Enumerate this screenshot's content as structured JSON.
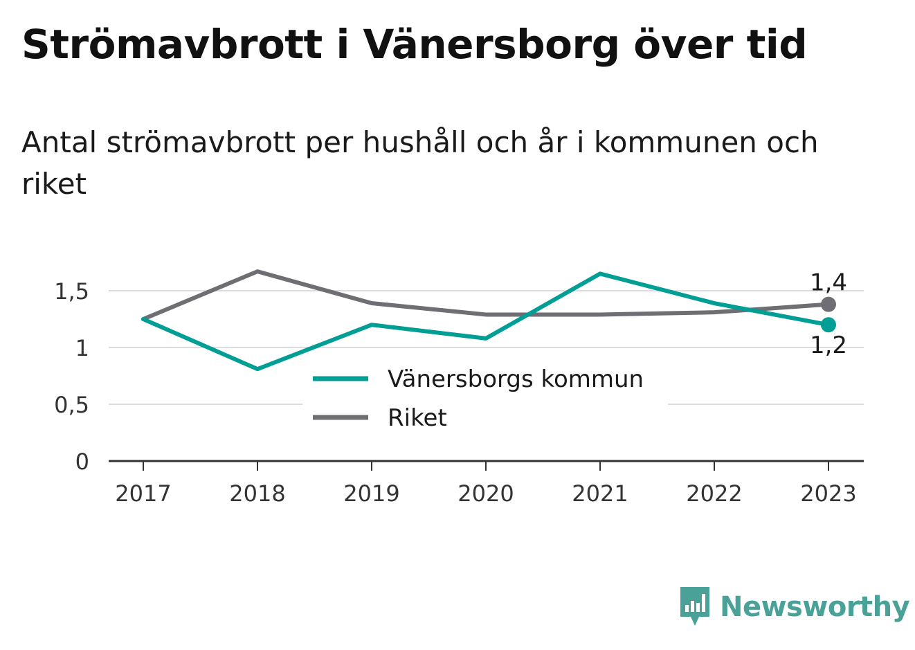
{
  "title": "Strömavbrott i Vänersborg över tid",
  "subtitle": "Antal strömavbrott per hushåll och år i kommunen och riket",
  "brand": {
    "name": "Newsworthy",
    "icon": "newsworthy-logo-icon",
    "color": "#4aa197"
  },
  "chart_data": {
    "type": "line",
    "x": [
      "2017",
      "2018",
      "2019",
      "2020",
      "2021",
      "2022",
      "2023"
    ],
    "ylim": [
      0,
      1.7
    ],
    "yticks": [
      0,
      0.5,
      1,
      1.5
    ],
    "ytick_labels": [
      "0",
      "0,5",
      "1",
      "1,5"
    ],
    "grid": true,
    "legend_position": "center",
    "series": [
      {
        "name": "Vänersborgs kommun",
        "color": "#009e94",
        "values": [
          1.25,
          0.81,
          1.2,
          1.08,
          1.65,
          1.39,
          1.2
        ],
        "end_label": "1,2"
      },
      {
        "name": "Riket",
        "color": "#6f6e75",
        "values": [
          1.25,
          1.67,
          1.39,
          1.29,
          1.29,
          1.31,
          1.38
        ],
        "end_label": "1,4"
      }
    ]
  }
}
